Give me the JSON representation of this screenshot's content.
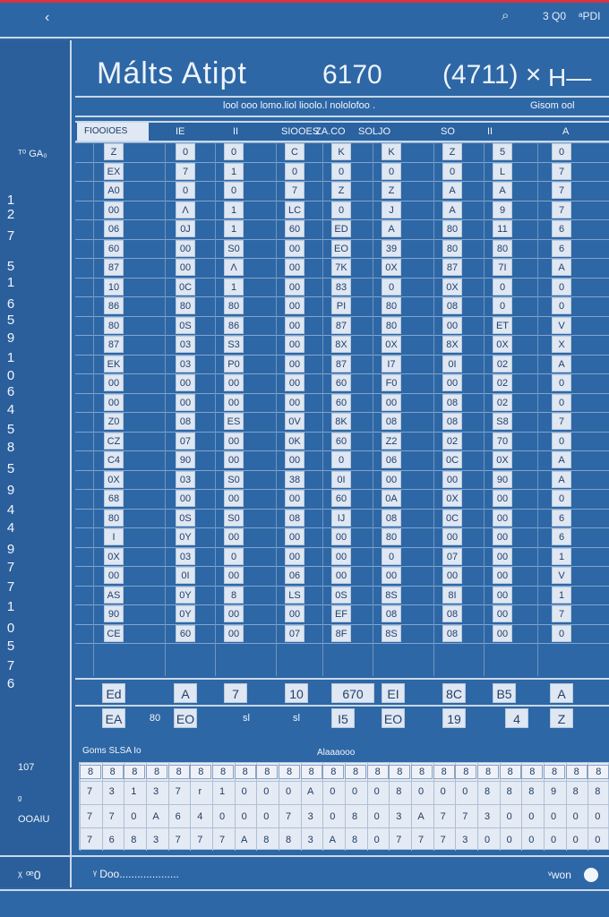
{
  "topbar": {
    "back_icon": "chevron-left-icon",
    "search_icon": "search-icon",
    "value_a": "3 Q0",
    "value_b": "ᵃPDI"
  },
  "sidebar": {
    "top_label": "ᵀ⁰\nGA₀",
    "numbers": [
      "1",
      "2",
      "7",
      "5",
      "1",
      "6",
      "5",
      "9",
      "1",
      "0",
      "6",
      "4",
      "5",
      "8",
      "5",
      "9",
      "4",
      "4",
      "9",
      "7",
      "7",
      "1",
      "0",
      "5",
      "7",
      "6"
    ],
    "mid_label": "107",
    "mid_label2": "ᵍ",
    "bottom_label": "OOAIU"
  },
  "header": {
    "title": "Málts Atipt",
    "title_num": "6170",
    "title_right": "(4711) ×",
    "title_x": "H—"
  },
  "subheader": {
    "title": "lool ooo lomo.liol lioolo.l nololofoo .",
    "right": "Gisom ool"
  },
  "column_header": {
    "first": "FIOOIOES",
    "cols": [
      "IE",
      "II",
      "SIOOES",
      "ZA.CO",
      "SOLJO",
      "SO",
      "II",
      "A"
    ]
  },
  "grid": {
    "columns": [
      [
        "Z",
        "EX",
        "A0",
        "00",
        "06",
        "60",
        "87",
        "10",
        "86",
        "80",
        "87",
        "EK",
        "00",
        "00",
        "Z0",
        "CZ",
        "C4",
        "0X",
        "68",
        "80",
        "I",
        "0X",
        "00",
        "AS",
        "90",
        "CE"
      ],
      [
        "0",
        "7",
        "0",
        "Λ",
        "0J",
        "00",
        "00",
        "0C",
        "80",
        "0S",
        "03",
        "03",
        "00",
        "00",
        "08",
        "07",
        "90",
        "03",
        "00",
        "0S",
        "0Y",
        "03",
        "0I",
        "0Y",
        "0Y",
        "60"
      ],
      [
        "0",
        "1",
        "0",
        "1",
        "1",
        "S0",
        "Λ",
        "1",
        "80",
        "86",
        "S3",
        "P0",
        "00",
        "00",
        "ES",
        "00",
        "00",
        "S0",
        "00",
        "S0",
        "00",
        "0",
        "00",
        "8",
        "00",
        "00"
      ],
      [
        "C",
        "0",
        "7",
        "LC",
        "60",
        "00",
        "00",
        "00",
        "00",
        "00",
        "00",
        "00",
        "00",
        "00",
        "0V",
        "0K",
        "00",
        "38",
        "00",
        "08",
        "00",
        "00",
        "06",
        "LS",
        "00",
        "07"
      ],
      [
        "K",
        "0",
        "Z",
        "0",
        "ED",
        "EO",
        "7K",
        "83",
        "PI",
        "87",
        "8X",
        "87",
        "60",
        "60",
        "8K",
        "60",
        "0",
        "0I",
        "60",
        "IJ",
        "00",
        "00",
        "00",
        "0S",
        "EF",
        "8F"
      ],
      [
        "K",
        "0",
        "Z",
        "J",
        "A",
        "39",
        "0X",
        "0",
        "80",
        "80",
        "0X",
        "I7",
        "F0",
        "00",
        "08",
        "Z2",
        "06",
        "00",
        "0A",
        "08",
        "80",
        "0",
        "00",
        "8S",
        "08",
        "8S"
      ],
      [
        "Z",
        "0",
        "A",
        "A",
        "80",
        "80",
        "87",
        "0X",
        "08",
        "00",
        "8X",
        "0I",
        "00",
        "08",
        "08",
        "02",
        "0C",
        "00",
        "0X",
        "0C",
        "00",
        "07",
        "00",
        "8I",
        "08",
        "08"
      ],
      [
        "5",
        "L",
        "A",
        "9",
        "11",
        "80",
        "7I",
        "0",
        "0",
        "ET",
        "0X",
        "02",
        "02",
        "02",
        "S8",
        "70",
        "0X",
        "90",
        "00",
        "00",
        "00",
        "00",
        "00",
        "00",
        "00",
        "00"
      ],
      [
        "0",
        "7",
        "7",
        "7",
        "6",
        "6",
        "A",
        "0",
        "0",
        "V",
        "X",
        "A",
        "0",
        "0",
        "7",
        "0",
        "A",
        "A",
        "0",
        "6",
        "6",
        "1",
        "V",
        "1",
        "7",
        "0"
      ]
    ]
  },
  "strip1": {
    "items": [
      "Ed",
      "A",
      "7",
      "10",
      "670",
      "EI",
      "8C",
      "B5",
      "A"
    ]
  },
  "strip2": {
    "items": [
      "EA",
      "EO",
      "80",
      "sl",
      "sl",
      "I5",
      "EO",
      "19",
      "4",
      "Z"
    ]
  },
  "panel": {
    "title": "Goms SLSA Io",
    "mid": "Alaaaooo",
    "head": [
      "8",
      "8",
      "8",
      "8",
      "8",
      "8",
      "8",
      "8",
      "8",
      "8",
      "8",
      "8",
      "8",
      "8",
      "8",
      "8",
      "8",
      "8",
      "8",
      "8",
      "8",
      "8",
      "8",
      "8"
    ],
    "row1": [
      "7",
      "3",
      "1",
      "3",
      "7",
      "r",
      "1",
      "0",
      "0",
      "0",
      "A",
      "0",
      "0",
      "0",
      "8",
      "0",
      "0",
      "0",
      "8",
      "8",
      "8",
      "9",
      "8",
      "8"
    ],
    "row2": [
      "7",
      "7",
      "0",
      "A",
      "6",
      "4",
      "0",
      "0",
      "0",
      "7",
      "3",
      "0",
      "8",
      "0",
      "3",
      "A",
      "7",
      "7",
      "3",
      "0",
      "0",
      "0",
      "0",
      "0"
    ],
    "row3": [
      "7",
      "6",
      "8",
      "3",
      "7",
      "7",
      "7",
      "A",
      "8",
      "8",
      "3",
      "A",
      "8",
      "0",
      "7",
      "7",
      "7",
      "3",
      "0",
      "0",
      "0",
      "0",
      "0",
      "0"
    ]
  },
  "footer": {
    "left": "ᵡ ꟹ0",
    "mid": "ᵞ Doo....................",
    "right": "ᵛwon"
  }
}
